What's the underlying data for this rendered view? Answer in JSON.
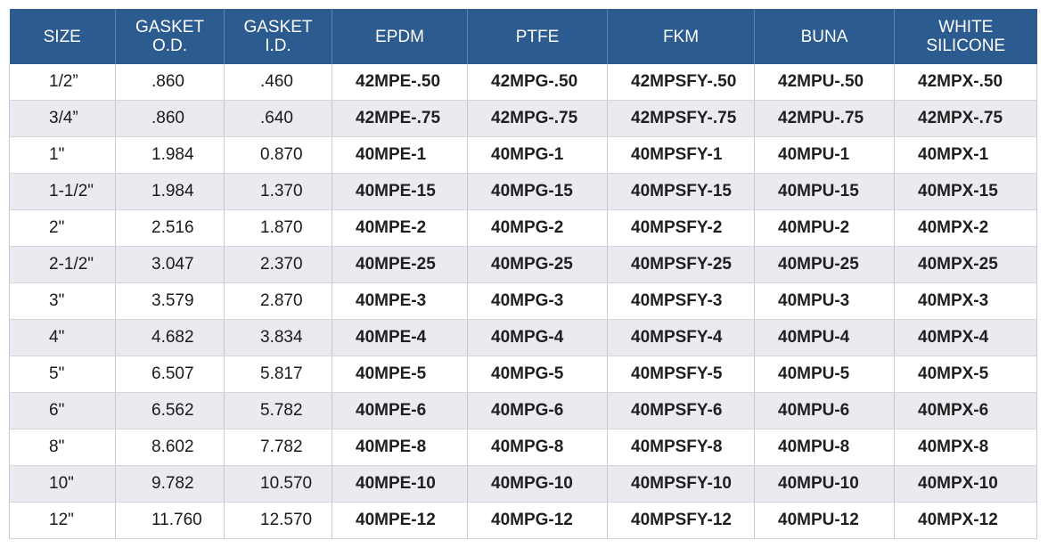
{
  "headers": [
    "SIZE",
    "GASKET\nO.D.",
    "GASKET\nI.D.",
    "EPDM",
    "PTFE",
    "FKM",
    "BUNA",
    "WHITE\nSILICONE"
  ],
  "rows": [
    [
      "1/2”",
      ".860",
      ".460",
      "42MPE-.50",
      "42MPG-.50",
      "42MPSFY-.50",
      "42MPU-.50",
      "42MPX-.50"
    ],
    [
      "3/4”",
      ".860",
      ".640",
      "42MPE-.75",
      "42MPG-.75",
      "42MPSFY-.75",
      "42MPU-.75",
      "42MPX-.75"
    ],
    [
      "1\"",
      "1.984",
      "0.870",
      "40MPE-1",
      "40MPG-1",
      "40MPSFY-1",
      "40MPU-1",
      "40MPX-1"
    ],
    [
      "1-1/2\"",
      "1.984",
      "1.370",
      "40MPE-15",
      "40MPG-15",
      "40MPSFY-15",
      "40MPU-15",
      "40MPX-15"
    ],
    [
      "2\"",
      "2.516",
      "1.870",
      "40MPE-2",
      "40MPG-2",
      "40MPSFY-2",
      "40MPU-2",
      "40MPX-2"
    ],
    [
      "2-1/2\"",
      "3.047",
      "2.370",
      "40MPE-25",
      "40MPG-25",
      "40MPSFY-25",
      "40MPU-25",
      "40MPX-25"
    ],
    [
      "3\"",
      "3.579",
      "2.870",
      "40MPE-3",
      "40MPG-3",
      "40MPSFY-3",
      "40MPU-3",
      "40MPX-3"
    ],
    [
      "4\"",
      "4.682",
      "3.834",
      "40MPE-4",
      "40MPG-4",
      "40MPSFY-4",
      "40MPU-4",
      "40MPX-4"
    ],
    [
      "5\"",
      "6.507",
      "5.817",
      "40MPE-5",
      "40MPG-5",
      "40MPSFY-5",
      "40MPU-5",
      "40MPX-5"
    ],
    [
      "6\"",
      "6.562",
      "5.782",
      "40MPE-6",
      "40MPG-6",
      "40MPSFY-6",
      "40MPU-6",
      "40MPX-6"
    ],
    [
      "8\"",
      "8.602",
      "7.782",
      "40MPE-8",
      "40MPG-8",
      "40MPSFY-8",
      "40MPU-8",
      "40MPX-8"
    ],
    [
      "10\"",
      "9.782",
      "10.570",
      "40MPE-10",
      "40MPG-10",
      "40MPSFY-10",
      "40MPU-10",
      "40MPX-10"
    ],
    [
      "12\"",
      "11.760",
      "12.570",
      "40MPE-12",
      "40MPG-12",
      "40MPSFY-12",
      "40MPU-12",
      "40MPX-12"
    ]
  ],
  "colors": {
    "header_bg": "#2b5b8f",
    "header_text": "#ffffff",
    "stripe": "#eaebf0"
  }
}
